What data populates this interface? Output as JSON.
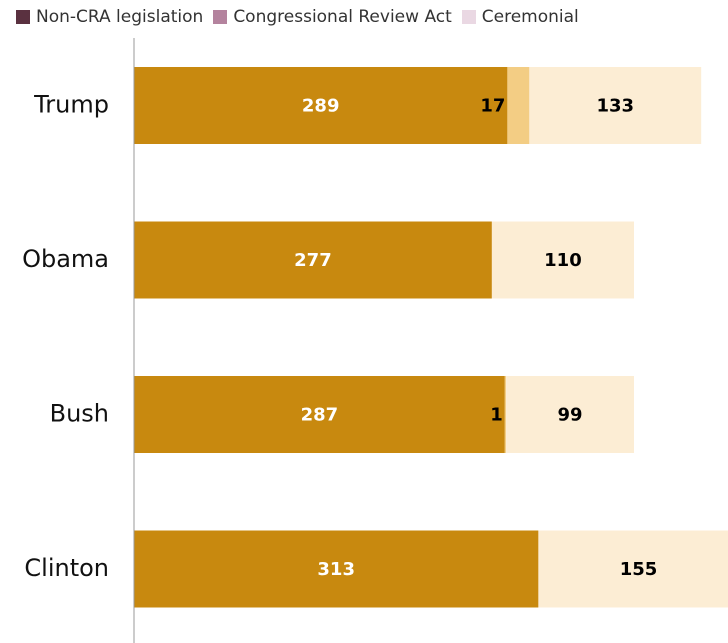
{
  "chart_data": {
    "type": "bar",
    "orientation": "horizontal",
    "stacked": true,
    "categories": [
      "Trump",
      "Obama",
      "Bush",
      "Clinton"
    ],
    "series": [
      {
        "name": "Non-CRA legislation",
        "legend_color": "#5a3140",
        "bar_color": "#c8890f",
        "label_color": "#ffffff",
        "values": [
          289,
          277,
          287,
          313
        ]
      },
      {
        "name": "Congressional Review Act",
        "legend_color": "#b4839e",
        "bar_color": "#f3cd84",
        "label_color": "#000000",
        "values": [
          17,
          0,
          1,
          0
        ]
      },
      {
        "name": "Ceremonial",
        "legend_color": "#ead8e3",
        "bar_color": "#fcedd4",
        "label_color": "#000000",
        "values": [
          133,
          110,
          99,
          155
        ]
      }
    ],
    "data_labels": [
      [
        "289",
        "17",
        "133"
      ],
      [
        "277",
        "",
        "110"
      ],
      [
        "287",
        "1",
        "99"
      ],
      [
        "313",
        "",
        "155"
      ]
    ],
    "xlim": [
      0,
      460
    ],
    "grid": false,
    "legend_position": "top-left"
  }
}
